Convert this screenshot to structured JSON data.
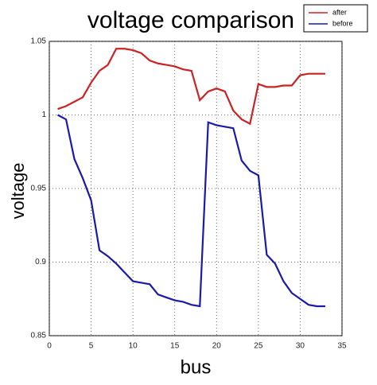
{
  "chart_data": {
    "type": "line",
    "title": "voltage comparison",
    "x_label": "bus",
    "y_label": "voltage",
    "x": [
      1,
      2,
      3,
      4,
      5,
      6,
      7,
      8,
      9,
      10,
      11,
      12,
      13,
      14,
      15,
      16,
      17,
      18,
      19,
      20,
      21,
      22,
      23,
      24,
      25,
      26,
      27,
      28,
      29,
      30,
      31,
      32,
      33
    ],
    "series": [
      {
        "name": "after",
        "color": "#cc2222",
        "values": [
          1.004,
          1.006,
          1.009,
          1.012,
          1.022,
          1.03,
          1.034,
          1.045,
          1.045,
          1.044,
          1.042,
          1.037,
          1.035,
          1.034,
          1.033,
          1.031,
          1.03,
          1.01,
          1.016,
          1.018,
          1.016,
          1.003,
          0.997,
          0.994,
          1.021,
          1.019,
          1.019,
          1.02,
          1.02,
          1.027,
          1.028,
          1.028,
          1.028
        ]
      },
      {
        "name": "before",
        "color": "#1a1aaa",
        "values": [
          1.0,
          0.997,
          0.97,
          0.957,
          0.942,
          0.908,
          0.904,
          0.899,
          0.893,
          0.887,
          0.886,
          0.885,
          0.878,
          0.876,
          0.874,
          0.873,
          0.871,
          0.87,
          0.995,
          0.993,
          0.992,
          0.991,
          0.969,
          0.962,
          0.959,
          0.905,
          0.899,
          0.887,
          0.879,
          0.875,
          0.871,
          0.87,
          0.87
        ]
      }
    ],
    "xlim": [
      0,
      35
    ],
    "xticks": [
      0,
      5,
      10,
      15,
      20,
      25,
      30,
      35
    ],
    "ylim": [
      0.85,
      1.05
    ],
    "yticks": [
      0.85,
      0.9,
      0.95,
      1,
      1.05
    ],
    "grid": true,
    "legend": "top-right"
  }
}
